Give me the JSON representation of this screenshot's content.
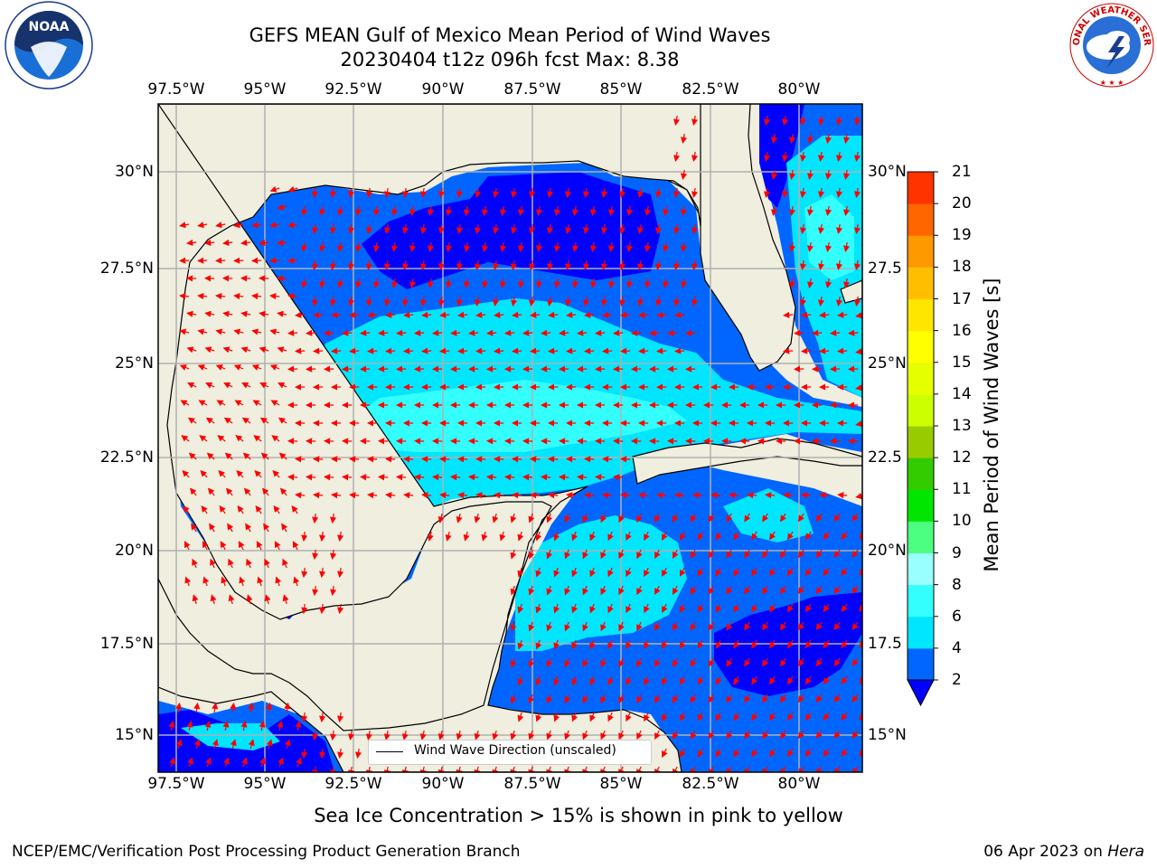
{
  "header": {
    "title_line1": "GEFS MEAN Gulf of Mexico Mean Period of Wind Waves",
    "title_line2": "20230404 t12z 096h fcst   Max: 8.38"
  },
  "logos": {
    "left": {
      "name": "noaa-logo",
      "text": "NOAA",
      "ring_text": "NATIONAL OCEANIC AND ATMOSPHERIC ADMINISTRATION · U.S. DEPARTMENT OF COMMERCE"
    },
    "right": {
      "name": "nws-logo",
      "ring_text": "NATIONAL WEATHER SERVICE"
    }
  },
  "map": {
    "lon_labels": [
      "97.5°W",
      "95°W",
      "92.5°W",
      "90°W",
      "87.5°W",
      "85°W",
      "82.5°W",
      "80°W"
    ],
    "lat_labels_left": [
      "30°N",
      "27.5°N",
      "25°N",
      "22.5°N",
      "20°N",
      "17.5°N",
      "15°N"
    ],
    "lat_labels_right": [
      "30°N",
      "27.5",
      "25°N",
      "22.5",
      "20°N",
      "17.5",
      "15°N"
    ],
    "legend": "Wind Wave Direction (unscaled)"
  },
  "colorbar": {
    "label": "Mean Period of Wind Waves [s]",
    "ticks": [
      "2",
      "4",
      "6",
      "8",
      "9",
      "10",
      "11",
      "12",
      "13",
      "14",
      "15",
      "16",
      "17",
      "18",
      "19",
      "20",
      "21"
    ],
    "colors": [
      "#0066ff",
      "#00e6ff",
      "#33ffff",
      "#99ffff",
      "#4dff80",
      "#00e600",
      "#33cc00",
      "#99cc00",
      "#ccff00",
      "#e6ff00",
      "#ffff00",
      "#ffe600",
      "#ffbf00",
      "#ff9900",
      "#ff6600",
      "#ff3300",
      "#ff0000"
    ],
    "extend_color": "#0000ff"
  },
  "sea_ice_note": "Sea Ice Concentration > 15% is shown in pink to yellow",
  "footer": {
    "left": "NCEP/EMC/Verification Post Processing Product Generation Branch",
    "right_prefix": "06 Apr 2023 on ",
    "right_machine": "Hera"
  }
}
